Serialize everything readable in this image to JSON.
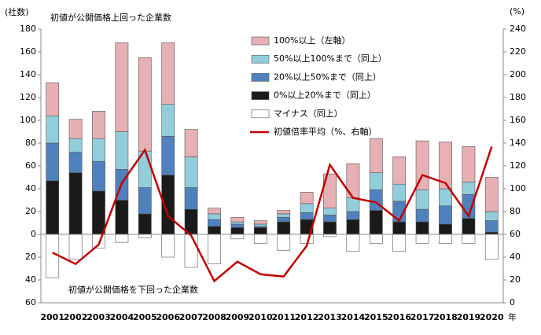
{
  "chart_data": {
    "type": "bar",
    "y_label": "(社数)",
    "y2_label": "(%)",
    "annotations": [
      "初値が公開価格上回った企業数",
      "初値が公開価格を下回った企業数"
    ],
    "x_unit": "年",
    "categories": [
      "2001",
      "2002",
      "2003",
      "2004",
      "2005",
      "2006",
      "2007",
      "2008",
      "2009",
      "2010",
      "2011",
      "2012",
      "2013",
      "2014",
      "2015",
      "2016",
      "2017",
      "2018",
      "2019",
      "2020"
    ],
    "series": [
      {
        "name": "100%以上（左軸）",
        "color": "#e6b0b4",
        "values": [
          29,
          17,
          24,
          78,
          82,
          54,
          24,
          5,
          4,
          3,
          3,
          10,
          30,
          30,
          30,
          24,
          43,
          41,
          31,
          30
        ]
      },
      {
        "name": "50%以上100%まで（同上）",
        "color": "#92cddc",
        "values": [
          24,
          12,
          20,
          33,
          32,
          28,
          27,
          5,
          2,
          2,
          3,
          8,
          6,
          12,
          15,
          15,
          17,
          15,
          11,
          8
        ]
      },
      {
        "name": "20%以上50%まで（同上）",
        "color": "#4f81bd",
        "values": [
          33,
          18,
          26,
          27,
          23,
          34,
          19,
          6,
          3,
          1,
          4,
          6,
          6,
          7,
          18,
          18,
          11,
          16,
          21,
          10
        ]
      },
      {
        "name": "0%以上20%まで（同上）",
        "color": "#1a1a1a",
        "values": [
          47,
          54,
          38,
          30,
          18,
          52,
          22,
          7,
          6,
          6,
          11,
          13,
          11,
          13,
          21,
          11,
          11,
          9,
          14,
          2
        ]
      },
      {
        "name": "マイナス（同上）",
        "color": "#ffffff",
        "values": [
          -38,
          -22,
          -12,
          -7,
          -3,
          -20,
          -29,
          -26,
          -4,
          -8,
          -14,
          -8,
          -2,
          -15,
          -8,
          -15,
          -8,
          -8,
          -8,
          -22
        ]
      },
      {
        "name": "初値倍率平均（%、右軸）",
        "color": "#c00000",
        "axis": "y2",
        "values": [
          44,
          34,
          51,
          105,
          134,
          76,
          59,
          19,
          36,
          25,
          23,
          50,
          121,
          92,
          88,
          72,
          112,
          105,
          76,
          137
        ]
      }
    ],
    "ylim": [
      -60,
      180
    ],
    "yticks": [
      {
        "value": -60,
        "label": "60"
      },
      {
        "value": -40,
        "label": "40"
      },
      {
        "value": -20,
        "label": "20"
      },
      0,
      20,
      40,
      60,
      80,
      100,
      120,
      140,
      160,
      180
    ],
    "y2lim": [
      0,
      240
    ],
    "y2ticks": [
      0,
      20,
      40,
      60,
      80,
      100,
      120,
      140,
      160,
      180,
      200,
      220,
      240
    ]
  }
}
